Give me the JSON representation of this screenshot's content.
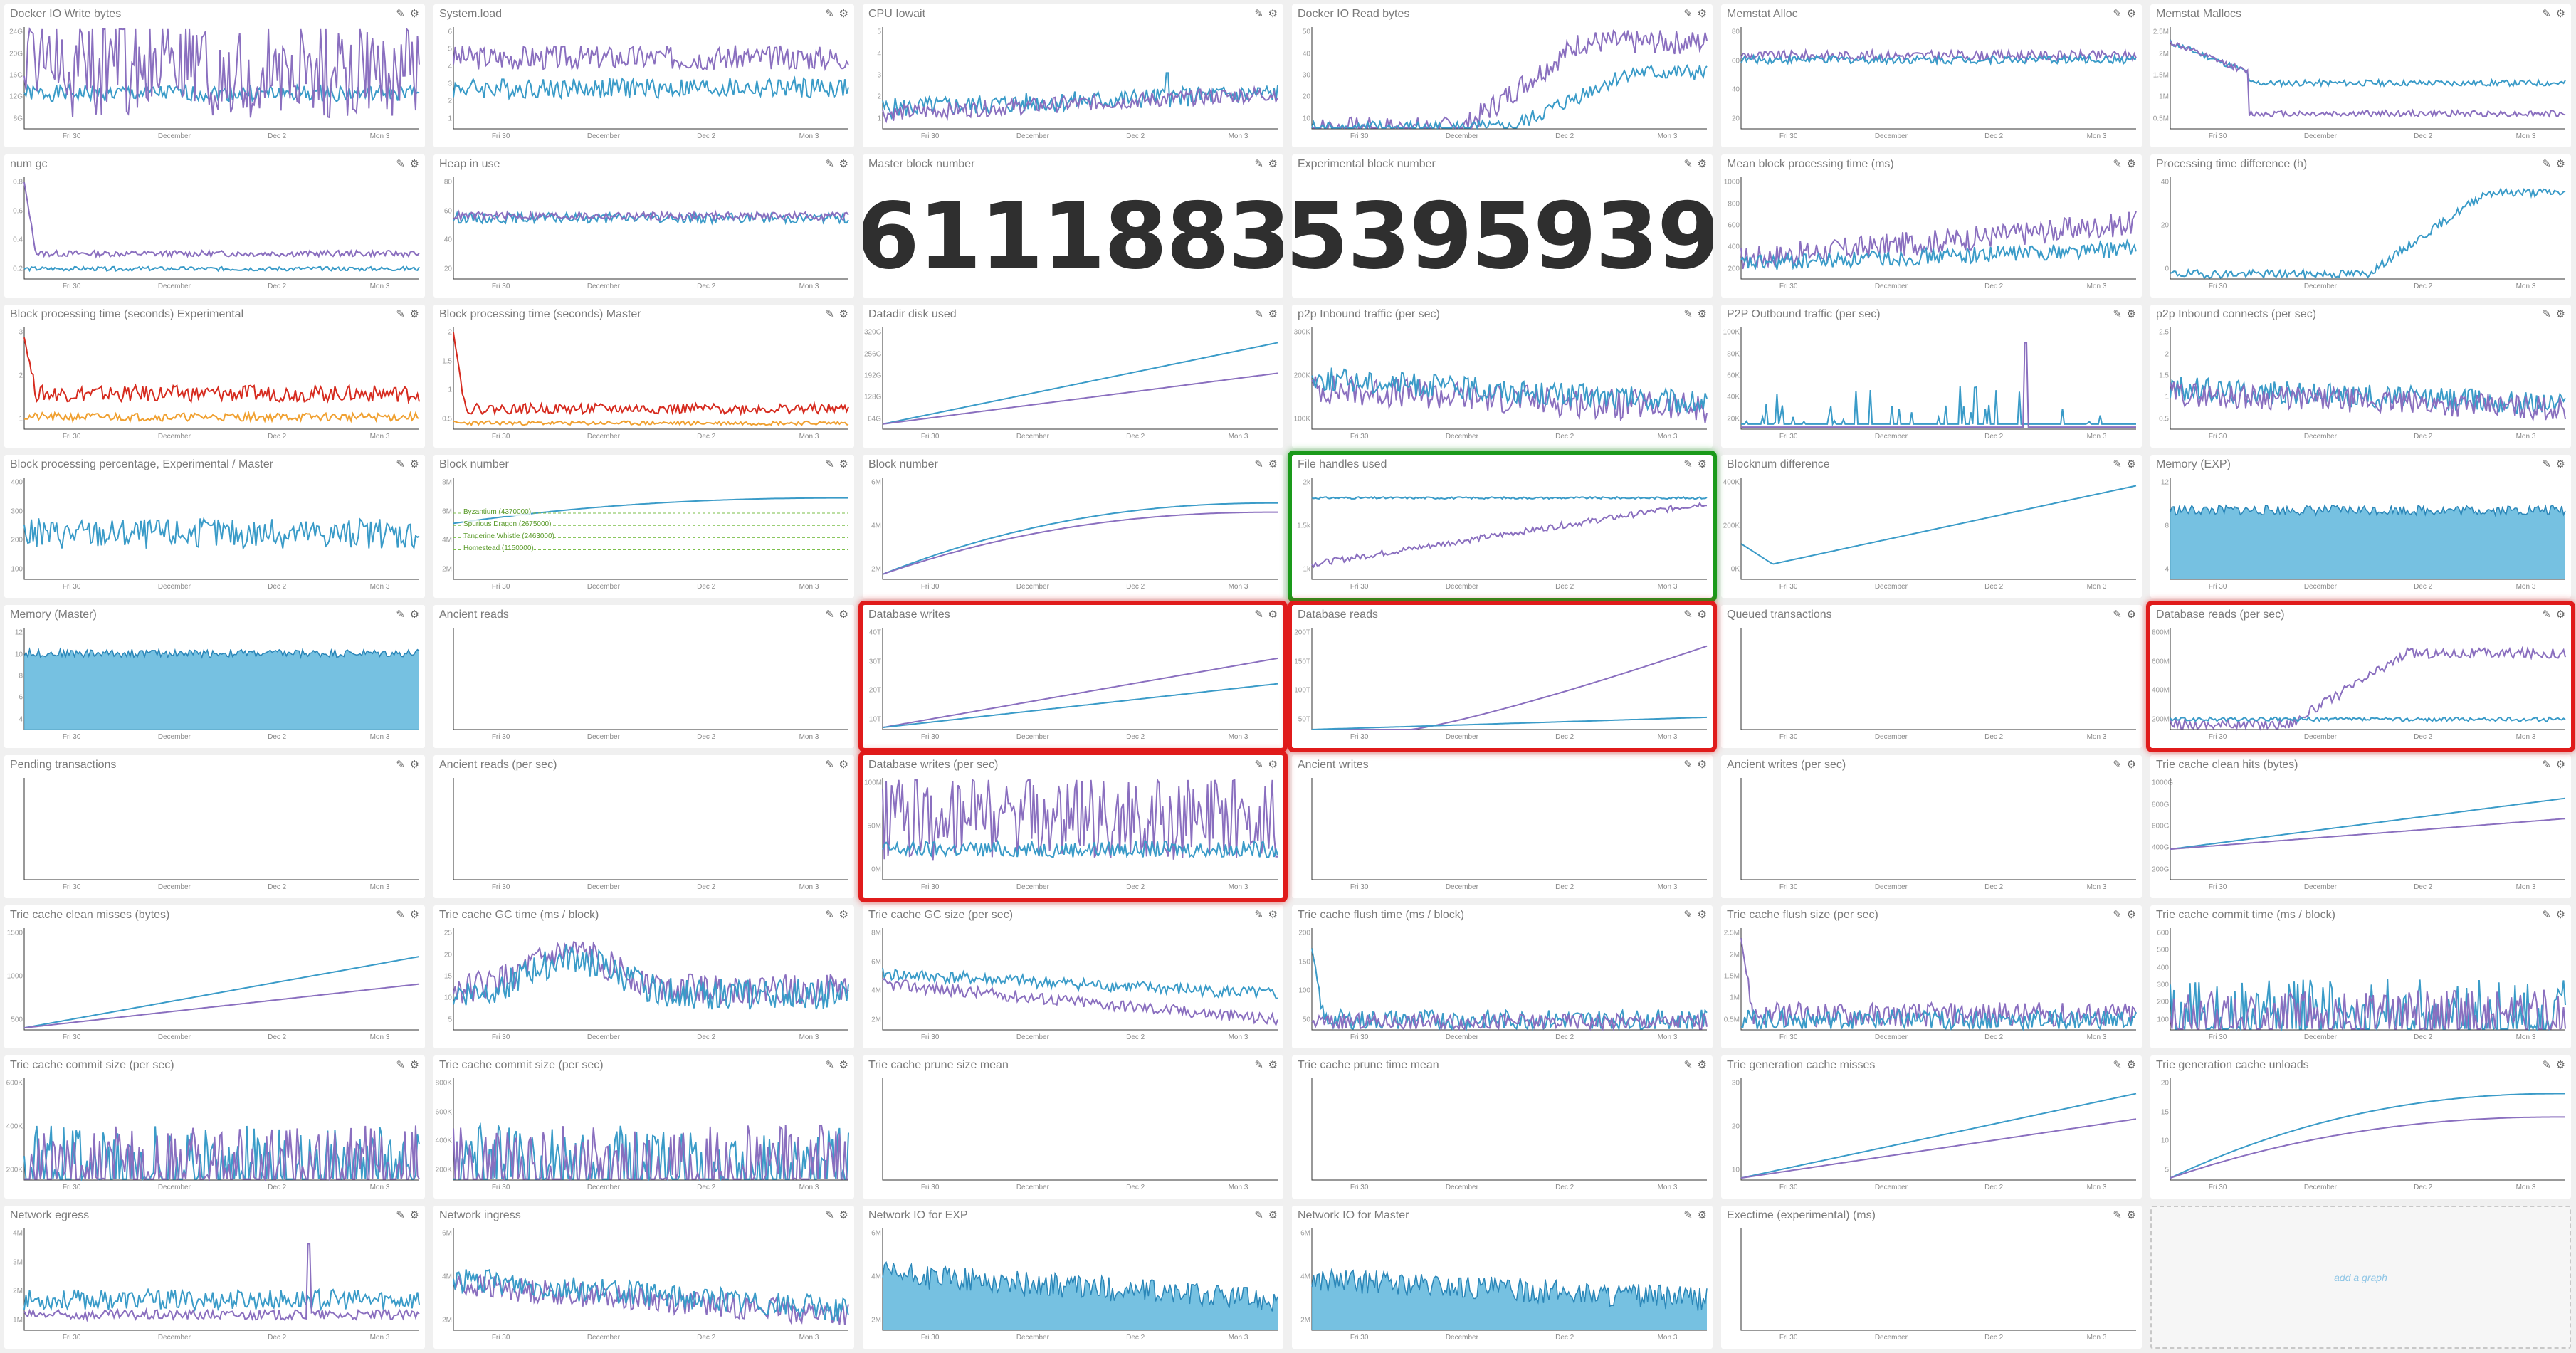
{
  "colors": {
    "blue": "#3a9bc8",
    "purple": "#8a6fbf",
    "red": "#d62b1f",
    "orange": "#f0a030",
    "fill": "#5eb6dc",
    "green_annot": "#7bbf4a"
  },
  "x_axis": [
    "Fri 30",
    "December",
    "Dec 2",
    "Mon 3"
  ],
  "add_graph_label": "add a graph",
  "panels": [
    {
      "title": "Docker IO Write bytes",
      "kind": "ts",
      "yticks": [
        "24G",
        "20G",
        "16G",
        "12G",
        "8G"
      ],
      "series": [
        {
          "c": "blue",
          "lvl": 0.35,
          "n": 0.08,
          "seed": 1
        },
        {
          "c": "purple",
          "lvl": 0.6,
          "n": 0.35,
          "spiky": true,
          "seed": 2
        }
      ]
    },
    {
      "title": "System.load",
      "kind": "ts",
      "yticks": [
        "6",
        "5",
        "4",
        "3",
        "2",
        "1"
      ],
      "series": [
        {
          "c": "purple",
          "lvl": 0.7,
          "n": 0.12,
          "seed": 3
        },
        {
          "c": "blue",
          "lvl": 0.4,
          "n": 0.1,
          "seed": 4
        }
      ]
    },
    {
      "title": "CPU Iowait",
      "kind": "ts",
      "yticks": [
        "5",
        "4",
        "3",
        "2",
        "1"
      ],
      "series": [
        {
          "c": "blue",
          "lvl": 0.2,
          "n": 0.1,
          "trend": 0.15,
          "seed": 5,
          "spike": 0.55
        },
        {
          "c": "purple",
          "lvl": 0.15,
          "n": 0.08,
          "trend": 0.2,
          "seed": 6
        }
      ]
    },
    {
      "title": "Docker IO Read bytes",
      "kind": "ts",
      "yticks": [
        "50",
        "40",
        "30",
        "20",
        "10"
      ],
      "series": [
        {
          "c": "purple",
          "lvl": 0.0,
          "n": 0.12,
          "ramp": 0.38,
          "top": 0.85,
          "seed": 7
        },
        {
          "c": "blue",
          "lvl": 0.0,
          "n": 0.08,
          "ramp": 0.5,
          "top": 0.55,
          "seed": 8
        }
      ]
    },
    {
      "title": "Memstat Alloc",
      "kind": "ts",
      "yticks": [
        "80",
        "60",
        "40",
        "20"
      ],
      "series": [
        {
          "c": "purple",
          "lvl": 0.72,
          "n": 0.05,
          "seed": 9
        },
        {
          "c": "blue",
          "lvl": 0.68,
          "n": 0.04,
          "seed": 10
        }
      ]
    },
    {
      "title": "Memstat Mallocs",
      "kind": "ts",
      "yticks": [
        "2.5M",
        "2M",
        "1.5M",
        "1M",
        "0.5M"
      ],
      "series": [
        {
          "c": "blue",
          "lvl": 0.45,
          "n": 0.03,
          "drop": 0.7,
          "seed": 11
        },
        {
          "c": "purple",
          "lvl": 0.15,
          "n": 0.03,
          "drop": 0.8,
          "seed": 12
        }
      ]
    },
    {
      "title": "num gc",
      "kind": "ts",
      "yticks": [
        "0.8",
        "0.6",
        "0.4",
        "0.2"
      ],
      "series": [
        {
          "c": "purple",
          "lvl": 0.25,
          "n": 0.03,
          "spike0": 0.95,
          "seed": 13
        },
        {
          "c": "blue",
          "lvl": 0.1,
          "n": 0.02,
          "seed": 14
        }
      ]
    },
    {
      "title": "Heap in use",
      "kind": "ts",
      "yticks": [
        "80",
        "60",
        "40",
        "20"
      ],
      "series": [
        {
          "c": "blue",
          "lvl": 0.6,
          "n": 0.05,
          "seed": 15
        },
        {
          "c": "purple",
          "lvl": 0.62,
          "n": 0.04,
          "seed": 16
        }
      ]
    },
    {
      "title": "Master block number",
      "kind": "big",
      "value": "6111883"
    },
    {
      "title": "Experimental block number",
      "kind": "big",
      "value": "5395939"
    },
    {
      "title": "Mean block processing time (ms)",
      "kind": "ts",
      "yticks": [
        "1000",
        "800",
        "600",
        "400",
        "200"
      ],
      "series": [
        {
          "c": "purple",
          "lvl": 0.2,
          "n": 0.12,
          "trend": 0.35,
          "seed": 17
        },
        {
          "c": "blue",
          "lvl": 0.15,
          "n": 0.08,
          "trend": 0.15,
          "seed": 18
        }
      ]
    },
    {
      "title": "Processing time difference (h)",
      "kind": "ts",
      "yticks": [
        "40",
        "20",
        "0"
      ],
      "series": [
        {
          "c": "blue",
          "lvl": 0.05,
          "n": 0.04,
          "ramp": 0.5,
          "top": 0.85,
          "seed": 19
        }
      ]
    },
    {
      "title": "Block processing time (seconds) Experimental",
      "kind": "ts",
      "yticks": [
        "3",
        "2",
        "1"
      ],
      "series": [
        {
          "c": "red",
          "lvl": 0.35,
          "n": 0.08,
          "spike0": 0.9,
          "seed": 20
        },
        {
          "c": "orange",
          "lvl": 0.12,
          "n": 0.04,
          "seed": 21
        }
      ]
    },
    {
      "title": "Block processing time (seconds) Master",
      "kind": "ts",
      "yticks": [
        "2",
        "1.5",
        "1",
        "0.5"
      ],
      "series": [
        {
          "c": "red",
          "lvl": 0.2,
          "n": 0.05,
          "spike0": 0.95,
          "seed": 22
        },
        {
          "c": "orange",
          "lvl": 0.06,
          "n": 0.02,
          "seed": 23
        }
      ]
    },
    {
      "title": "Datadir disk used",
      "kind": "line",
      "yticks": [
        "320G",
        "256G",
        "192G",
        "128G",
        "64G"
      ],
      "series": [
        {
          "c": "blue",
          "from": 0.05,
          "to": 0.85
        },
        {
          "c": "purple",
          "from": 0.05,
          "to": 0.55
        }
      ]
    },
    {
      "title": "p2p Inbound traffic (per sec)",
      "kind": "ts",
      "yticks": [
        "300K",
        "200K",
        "100K"
      ],
      "series": [
        {
          "c": "purple",
          "lvl": 0.4,
          "n": 0.15,
          "trend": -0.2,
          "seed": 24
        },
        {
          "c": "blue",
          "lvl": 0.5,
          "n": 0.12,
          "trend": -0.25,
          "seed": 25
        }
      ]
    },
    {
      "title": "P2P Outbound traffic (per sec)",
      "kind": "ts",
      "yticks": [
        "100K",
        "80K",
        "60K",
        "40K",
        "20K"
      ],
      "series": [
        {
          "c": "blue",
          "lvl": 0.05,
          "n": 0.1,
          "sparse": true,
          "seed": 26
        },
        {
          "c": "purple",
          "lvl": 0.02,
          "n": 0.0,
          "spike": 0.85,
          "seed": 27
        }
      ]
    },
    {
      "title": "p2p Inbound connects (per sec)",
      "kind": "ts",
      "yticks": [
        "2.5",
        "2",
        "1.5",
        "1",
        "0.5"
      ],
      "series": [
        {
          "c": "blue",
          "lvl": 0.4,
          "n": 0.12,
          "trend": -0.15,
          "seed": 28
        },
        {
          "c": "purple",
          "lvl": 0.35,
          "n": 0.12,
          "trend": -0.15,
          "seed": 29
        }
      ]
    },
    {
      "title": "Block processing percentage, Experimental / Master",
      "kind": "ts",
      "yticks": [
        "400",
        "300",
        "200",
        "100"
      ],
      "series": [
        {
          "c": "blue",
          "lvl": 0.45,
          "n": 0.15,
          "seed": 30
        }
      ]
    },
    {
      "title": "Block number",
      "kind": "line",
      "yticks": [
        "8M",
        "6M",
        "4M",
        "2M"
      ],
      "series": [
        {
          "c": "blue",
          "from": 0.55,
          "to": 0.8,
          "curve": true
        }
      ],
      "annotations": [
        "Byzantium (4370000)",
        "Spurious Dragon (2675000)",
        "Tangerine Whistle (2463000)",
        "Homestead (1150000)"
      ]
    },
    {
      "title": "Block number",
      "kind": "line",
      "yticks": [
        "6M",
        "4M",
        "2M"
      ],
      "series": [
        {
          "c": "blue",
          "from": 0.05,
          "to": 0.75,
          "curve": true
        },
        {
          "c": "purple",
          "from": 0.05,
          "to": 0.66,
          "curve": true
        }
      ]
    },
    {
      "title": "File handles used",
      "kind": "ts",
      "yticks": [
        "2k",
        "1.5k",
        "1k"
      ],
      "highlight": "green",
      "series": [
        {
          "c": "blue",
          "lvl": 0.8,
          "n": 0.01,
          "seed": 31
        },
        {
          "c": "purple",
          "lvl": 0.15,
          "n": 0.03,
          "trend": 0.6,
          "seed": 32
        }
      ]
    },
    {
      "title": "Blocknum difference",
      "kind": "line",
      "yticks": [
        "400K",
        "200K",
        "0K"
      ],
      "series": [
        {
          "c": "blue",
          "from": 0.35,
          "to": 0.92,
          "dip": true
        }
      ]
    },
    {
      "title": "Memory (EXP)",
      "kind": "area",
      "yticks": [
        "12",
        "8",
        "4"
      ],
      "series": [
        {
          "c": "fill",
          "lvl": 0.68,
          "n": 0.05,
          "seed": 33
        }
      ]
    },
    {
      "title": "Memory (Master)",
      "kind": "area",
      "yticks": [
        "12",
        "10",
        "8",
        "6",
        "4"
      ],
      "series": [
        {
          "c": "fill",
          "lvl": 0.75,
          "n": 0.04,
          "seed": 34
        }
      ]
    },
    {
      "title": "Ancient reads",
      "kind": "empty"
    },
    {
      "title": "Database writes",
      "kind": "line",
      "yticks": [
        "40T",
        "30T",
        "20T",
        "10T"
      ],
      "highlight": "red",
      "series": [
        {
          "c": "purple",
          "from": 0.02,
          "to": 0.7
        },
        {
          "c": "blue",
          "from": 0.02,
          "to": 0.45
        }
      ]
    },
    {
      "title": "Database reads",
      "kind": "line",
      "yticks": [
        "200T",
        "150T",
        "100T",
        "50T"
      ],
      "highlight": "red",
      "series": [
        {
          "c": "purple",
          "from": 0.0,
          "to": 0.82,
          "late": true
        },
        {
          "c": "blue",
          "from": 0.0,
          "to": 0.12
        }
      ]
    },
    {
      "title": "Queued transactions",
      "kind": "empty"
    },
    {
      "title": "Database reads (per sec)",
      "kind": "ts",
      "yticks": [
        "800M",
        "600M",
        "400M",
        "200M"
      ],
      "highlight": "red",
      "series": [
        {
          "c": "purple",
          "lvl": 0.05,
          "n": 0.05,
          "ramp": 0.3,
          "top": 0.75,
          "seed": 35
        },
        {
          "c": "blue",
          "lvl": 0.1,
          "n": 0.02,
          "seed": 36
        }
      ]
    },
    {
      "title": "Pending transactions",
      "kind": "empty"
    },
    {
      "title": "Ancient reads (per sec)",
      "kind": "empty"
    },
    {
      "title": "Database writes (per sec)",
      "kind": "ts",
      "yticks": [
        "100M",
        "50M",
        "0M"
      ],
      "highlight": "red",
      "series": [
        {
          "c": "purple",
          "lvl": 0.6,
          "n": 0.3,
          "spiky": true,
          "seed": 37
        },
        {
          "c": "blue",
          "lvl": 0.3,
          "n": 0.08,
          "seed": 38
        }
      ]
    },
    {
      "title": "Ancient writes",
      "kind": "empty"
    },
    {
      "title": "Ancient writes (per sec)",
      "kind": "empty"
    },
    {
      "title": "Trie cache clean hits (bytes)",
      "kind": "line",
      "yticks": [
        "1000G",
        "800G",
        "600G",
        "400G",
        "200G"
      ],
      "series": [
        {
          "c": "blue",
          "from": 0.3,
          "to": 0.8
        },
        {
          "c": "purple",
          "from": 0.3,
          "to": 0.6
        }
      ]
    },
    {
      "title": "Trie cache clean misses (bytes)",
      "kind": "line",
      "yticks": [
        "1500",
        "1000",
        "500"
      ],
      "series": [
        {
          "c": "blue",
          "from": 0.02,
          "to": 0.72
        },
        {
          "c": "purple",
          "from": 0.02,
          "to": 0.45
        }
      ]
    },
    {
      "title": "Trie cache GC time (ms / block)",
      "kind": "ts",
      "yticks": [
        "25",
        "20",
        "15",
        "10",
        "5"
      ],
      "series": [
        {
          "c": "purple",
          "lvl": 0.4,
          "n": 0.15,
          "hump": true,
          "seed": 39
        },
        {
          "c": "blue",
          "lvl": 0.35,
          "n": 0.15,
          "hump": true,
          "seed": 40
        }
      ]
    },
    {
      "title": "Trie cache GC size (per sec)",
      "kind": "ts",
      "yticks": [
        "8M",
        "6M",
        "4M",
        "2M"
      ],
      "series": [
        {
          "c": "blue",
          "lvl": 0.55,
          "n": 0.06,
          "trend": -0.2,
          "seed": 41
        },
        {
          "c": "purple",
          "lvl": 0.45,
          "n": 0.06,
          "trend": -0.35,
          "seed": 42
        }
      ]
    },
    {
      "title": "Trie cache flush time (ms / block)",
      "kind": "ts",
      "yticks": [
        "200",
        "150",
        "100",
        "50"
      ],
      "series": [
        {
          "c": "blue",
          "lvl": 0.1,
          "n": 0.1,
          "spike0": 0.8,
          "seed": 43
        },
        {
          "c": "purple",
          "lvl": 0.08,
          "n": 0.08,
          "seed": 44
        }
      ]
    },
    {
      "title": "Trie cache flush size (per sec)",
      "kind": "ts",
      "yticks": [
        "2.5M",
        "2M",
        "1.5M",
        "1M",
        "0.5M"
      ],
      "series": [
        {
          "c": "purple",
          "lvl": 0.15,
          "n": 0.12,
          "spike0": 0.9,
          "seed": 45
        },
        {
          "c": "blue",
          "lvl": 0.1,
          "n": 0.1,
          "seed": 46
        }
      ]
    },
    {
      "title": "Trie cache commit time (ms / block)",
      "kind": "ts",
      "yticks": [
        "600",
        "500",
        "400",
        "300",
        "200",
        "100"
      ],
      "series": [
        {
          "c": "blue",
          "lvl": 0.15,
          "n": 0.25,
          "spiky": true,
          "seed": 47
        },
        {
          "c": "purple",
          "lvl": 0.12,
          "n": 0.2,
          "spiky": true,
          "seed": 48
        }
      ]
    },
    {
      "title": "Trie cache commit size (per sec)",
      "kind": "ts",
      "yticks": [
        "600K",
        "400K",
        "200K"
      ],
      "series": [
        {
          "c": "blue",
          "lvl": 0.12,
          "n": 0.3,
          "spiky": true,
          "seed": 49
        },
        {
          "c": "purple",
          "lvl": 0.12,
          "n": 0.3,
          "spiky": true,
          "seed": 50
        }
      ]
    },
    {
      "title": "Trie cache commit size (per sec)",
      "kind": "ts",
      "yticks": [
        "800K",
        "600K",
        "400K",
        "200K"
      ],
      "series": [
        {
          "c": "blue",
          "lvl": 0.12,
          "n": 0.3,
          "spiky": true,
          "seed": 51
        },
        {
          "c": "purple",
          "lvl": 0.12,
          "n": 0.3,
          "spiky": true,
          "seed": 52
        }
      ]
    },
    {
      "title": "Trie cache prune size mean",
      "kind": "empty"
    },
    {
      "title": "Trie cache prune time mean",
      "kind": "empty"
    },
    {
      "title": "Trie generation cache misses",
      "kind": "line",
      "yticks": [
        "30",
        "20",
        "10"
      ],
      "series": [
        {
          "c": "blue",
          "from": 0.02,
          "to": 0.85
        },
        {
          "c": "purple",
          "from": 0.02,
          "to": 0.6
        }
      ]
    },
    {
      "title": "Trie generation cache unloads",
      "kind": "line",
      "yticks": [
        "20",
        "15",
        "10",
        "5"
      ],
      "series": [
        {
          "c": "blue",
          "from": 0.02,
          "to": 0.85,
          "curve": true
        },
        {
          "c": "purple",
          "from": 0.02,
          "to": 0.62,
          "curve": true
        }
      ]
    },
    {
      "title": "Network egress",
      "kind": "ts",
      "yticks": [
        "4M",
        "3M",
        "2M",
        "1M"
      ],
      "series": [
        {
          "c": "blue",
          "lvl": 0.3,
          "n": 0.1,
          "seed": 53
        },
        {
          "c": "purple",
          "lvl": 0.15,
          "n": 0.05,
          "spike": 0.85,
          "seed": 54
        }
      ]
    },
    {
      "title": "Network ingress",
      "kind": "ts",
      "yticks": [
        "6M",
        "4M",
        "2M"
      ],
      "series": [
        {
          "c": "purple",
          "lvl": 0.45,
          "n": 0.12,
          "trend": -0.3,
          "seed": 55
        },
        {
          "c": "blue",
          "lvl": 0.5,
          "n": 0.12,
          "trend": -0.3,
          "seed": 56
        }
      ]
    },
    {
      "title": "Network IO for EXP",
      "kind": "area",
      "yticks": [
        "6M",
        "4M",
        "2M"
      ],
      "series": [
        {
          "c": "fill",
          "lvl": 0.55,
          "n": 0.12,
          "trend": -0.25,
          "seed": 57
        }
      ]
    },
    {
      "title": "Network IO for Master",
      "kind": "area",
      "yticks": [
        "6M",
        "4M",
        "2M"
      ],
      "series": [
        {
          "c": "fill",
          "lvl": 0.5,
          "n": 0.12,
          "trend": -0.2,
          "seed": 58
        }
      ]
    },
    {
      "title": "Exectime (experimental) (ms)",
      "kind": "empty"
    },
    {
      "title": "",
      "kind": "add"
    }
  ]
}
